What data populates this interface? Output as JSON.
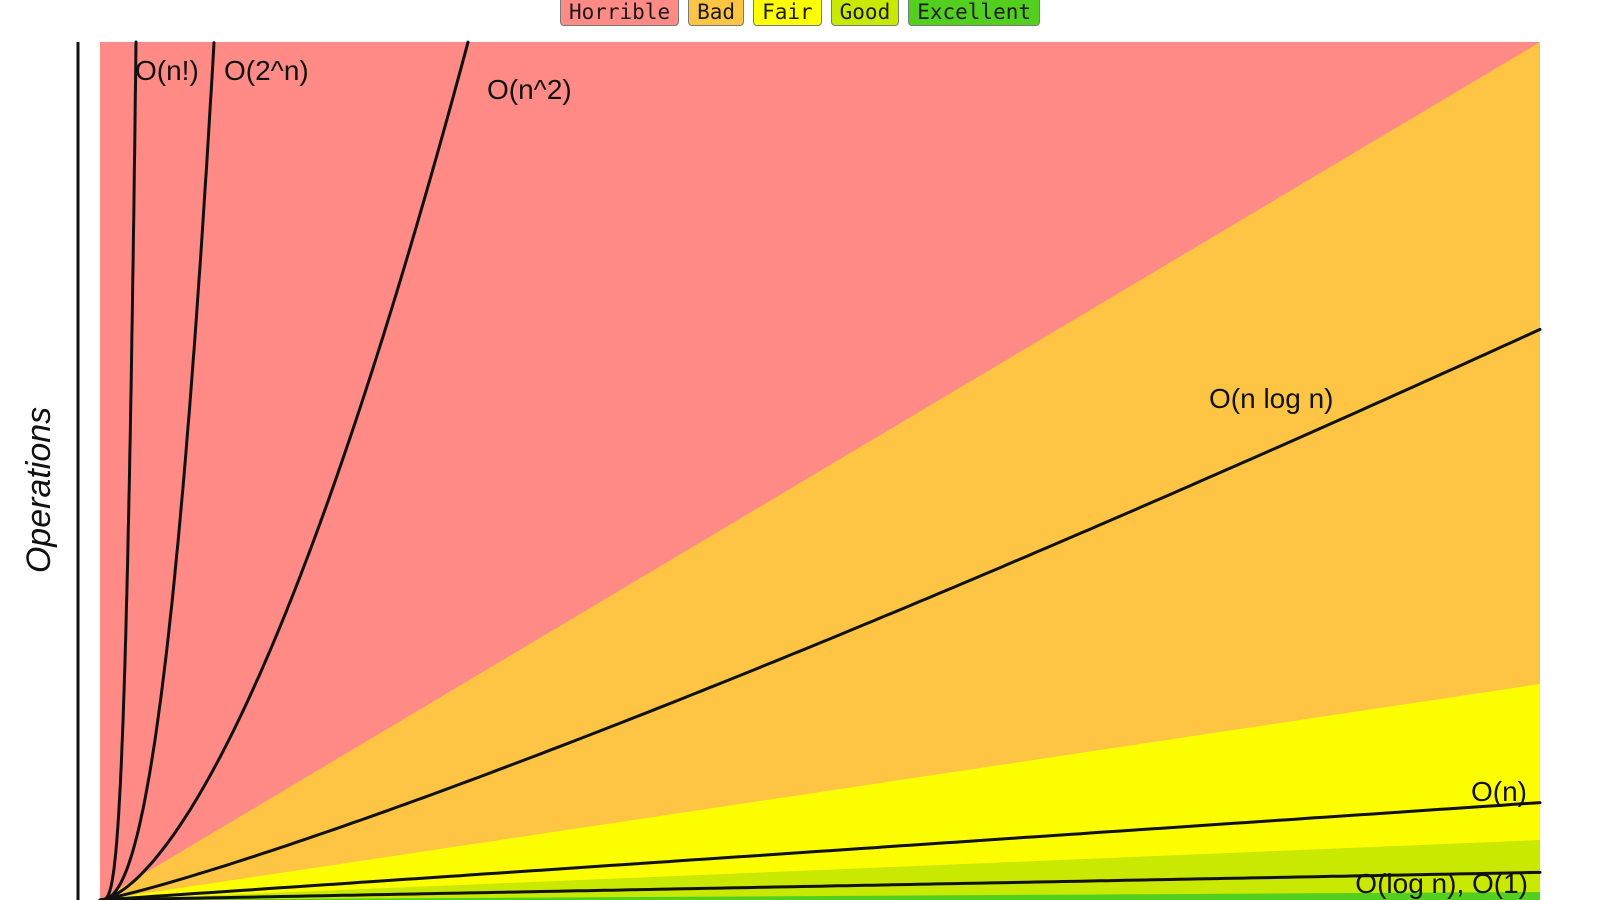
{
  "chart_data": {
    "type": "area",
    "title": "",
    "xlabel": "",
    "ylabel": "Operations",
    "grid": false,
    "legend": {
      "placement": "top-center",
      "entries": [
        {
          "label": "Horrible",
          "color": "#ff8a86"
        },
        {
          "label": "Bad",
          "color": "#fdc543"
        },
        {
          "label": "Fair",
          "color": "#fdff00"
        },
        {
          "label": "Good",
          "color": "#c9ea00"
        },
        {
          "label": "Excellent",
          "color": "#53d01f"
        }
      ]
    },
    "series": [
      {
        "name": "O(n!)",
        "kind": "curve"
      },
      {
        "name": "O(2^n)",
        "kind": "curve"
      },
      {
        "name": "O(n^2)",
        "kind": "curve"
      },
      {
        "name": "O(n log n)",
        "kind": "curve"
      },
      {
        "name": "O(n)",
        "kind": "curve"
      },
      {
        "name": "O(log n), O(1)",
        "kind": "curve"
      }
    ]
  }
}
